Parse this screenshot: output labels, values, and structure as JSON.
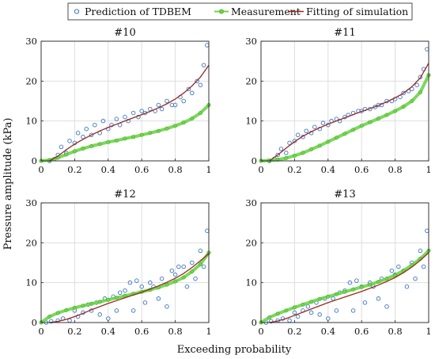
{
  "figure": {
    "xlabel": "Exceeding probability",
    "ylabel": "Pressure amplitude (kPa)"
  },
  "legend": {
    "items": [
      {
        "label": "Prediction of TDBEM",
        "color": "#3a76c4",
        "marker": "open-circle"
      },
      {
        "label": "Measurement",
        "color": "#6fd44a",
        "marker": "filled-circle"
      },
      {
        "label": "Fitting of simulation",
        "color": "#9b2a22",
        "marker": "line"
      }
    ]
  },
  "chart_data": [
    {
      "type": "scatter",
      "title": "#10",
      "xlim": [
        0,
        1
      ],
      "ylim": [
        0,
        30
      ],
      "xticks": [
        "0",
        "0.2",
        "0.4",
        "0.6",
        "0.8",
        "1"
      ],
      "yticks": [
        "0",
        "10",
        "20",
        "30"
      ],
      "grid": true,
      "series": [
        {
          "name": "Prediction of TDBEM",
          "kind": "scatter",
          "color": "#3a76c4",
          "x": [
            0.05,
            0.08,
            0.1,
            0.12,
            0.15,
            0.17,
            0.2,
            0.22,
            0.25,
            0.27,
            0.3,
            0.32,
            0.35,
            0.37,
            0.4,
            0.42,
            0.45,
            0.47,
            0.5,
            0.52,
            0.55,
            0.58,
            0.6,
            0.62,
            0.65,
            0.68,
            0.7,
            0.72,
            0.75,
            0.78,
            0.8,
            0.83,
            0.85,
            0.88,
            0.9,
            0.93,
            0.95,
            0.97,
            0.99
          ],
          "y": [
            0,
            0.5,
            1.5,
            3.5,
            2,
            5,
            4.5,
            7,
            6,
            8,
            6.5,
            9,
            7,
            10,
            8,
            9,
            10.5,
            9,
            11,
            10,
            12,
            11,
            12.5,
            12,
            13,
            12.5,
            14,
            13,
            15,
            14,
            14,
            16,
            15,
            18,
            17,
            20,
            19,
            24,
            29
          ]
        },
        {
          "name": "Measurement",
          "kind": "thickline",
          "color": "#6fd44a",
          "x": [
            0,
            0.05,
            0.1,
            0.15,
            0.2,
            0.25,
            0.3,
            0.35,
            0.4,
            0.45,
            0.5,
            0.55,
            0.6,
            0.65,
            0.7,
            0.75,
            0.8,
            0.85,
            0.9,
            0.95,
            1.0
          ],
          "y": [
            0,
            0.2,
            0.8,
            1.6,
            2.4,
            3.1,
            3.7,
            4.2,
            4.7,
            5.1,
            5.6,
            6.0,
            6.5,
            7.0,
            7.5,
            8.1,
            8.8,
            9.6,
            10.6,
            12.0,
            14.0
          ]
        },
        {
          "name": "Fitting of simulation",
          "kind": "line",
          "color": "#9b2a22",
          "x": [
            0.05,
            0.1,
            0.15,
            0.2,
            0.25,
            0.3,
            0.35,
            0.4,
            0.45,
            0.5,
            0.55,
            0.6,
            0.65,
            0.7,
            0.75,
            0.8,
            0.85,
            0.9,
            0.95,
            1.0
          ],
          "y": [
            0,
            1.2,
            2.8,
            4.2,
            5.4,
            6.5,
            7.5,
            8.4,
            9.2,
            10.0,
            10.8,
            11.6,
            12.4,
            13.3,
            14.3,
            15.5,
            17.0,
            18.8,
            21.0,
            24.0
          ]
        }
      ]
    },
    {
      "type": "scatter",
      "title": "#11",
      "xlim": [
        0,
        1
      ],
      "ylim": [
        0,
        30
      ],
      "xticks": [
        "0",
        "0.2",
        "0.4",
        "0.6",
        "0.8",
        "1"
      ],
      "yticks": [
        "0",
        "10",
        "20",
        "30"
      ],
      "grid": true,
      "series": [
        {
          "name": "Prediction of TDBEM",
          "kind": "scatter",
          "color": "#3a76c4",
          "x": [
            0.05,
            0.08,
            0.1,
            0.12,
            0.15,
            0.17,
            0.2,
            0.22,
            0.25,
            0.27,
            0.3,
            0.32,
            0.35,
            0.37,
            0.4,
            0.42,
            0.45,
            0.47,
            0.5,
            0.52,
            0.55,
            0.58,
            0.6,
            0.62,
            0.65,
            0.68,
            0.7,
            0.72,
            0.75,
            0.78,
            0.8,
            0.83,
            0.85,
            0.88,
            0.9,
            0.93,
            0.95,
            0.97,
            0.99
          ],
          "y": [
            0,
            0.5,
            1.5,
            3,
            2,
            4.5,
            5,
            6.5,
            6,
            7.5,
            7,
            8.5,
            8,
            9.5,
            9,
            10,
            10.5,
            10,
            11,
            11.5,
            12,
            12.5,
            12.5,
            13,
            13,
            13.5,
            14,
            14,
            15,
            15,
            15.5,
            16,
            17,
            17.5,
            18,
            19,
            21,
            23,
            28
          ]
        },
        {
          "name": "Measurement",
          "kind": "thickline",
          "color": "#6fd44a",
          "x": [
            0,
            0.05,
            0.1,
            0.15,
            0.2,
            0.25,
            0.3,
            0.35,
            0.4,
            0.45,
            0.5,
            0.55,
            0.6,
            0.65,
            0.7,
            0.75,
            0.8,
            0.85,
            0.9,
            0.95,
            1.0
          ],
          "y": [
            0,
            0.1,
            0.3,
            0.7,
            1.3,
            2.0,
            2.9,
            3.8,
            4.8,
            5.8,
            6.8,
            7.8,
            8.8,
            9.7,
            10.6,
            11.5,
            12.5,
            13.6,
            15.0,
            17.2,
            21.5
          ]
        },
        {
          "name": "Fitting of simulation",
          "kind": "line",
          "color": "#9b2a22",
          "x": [
            0.05,
            0.1,
            0.15,
            0.2,
            0.25,
            0.3,
            0.35,
            0.4,
            0.45,
            0.5,
            0.55,
            0.6,
            0.65,
            0.7,
            0.75,
            0.8,
            0.85,
            0.9,
            0.95,
            1.0
          ],
          "y": [
            0,
            1.5,
            3.2,
            4.8,
            6.2,
            7.3,
            8.3,
            9.2,
            10.0,
            10.8,
            11.6,
            12.4,
            13.1,
            13.9,
            14.8,
            15.8,
            17.0,
            18.6,
            20.8,
            24.5
          ]
        }
      ]
    },
    {
      "type": "scatter",
      "title": "#12",
      "xlim": [
        0,
        1
      ],
      "ylim": [
        0,
        30
      ],
      "xticks": [
        "0",
        "0.2",
        "0.4",
        "0.6",
        "0.8",
        "1"
      ],
      "yticks": [
        "0",
        "10",
        "20",
        "30"
      ],
      "grid": true,
      "series": [
        {
          "name": "Prediction of TDBEM",
          "kind": "scatter",
          "color": "#3a76c4",
          "x": [
            0.03,
            0.06,
            0.1,
            0.13,
            0.17,
            0.2,
            0.22,
            0.25,
            0.28,
            0.3,
            0.33,
            0.35,
            0.38,
            0.4,
            0.43,
            0.45,
            0.47,
            0.5,
            0.53,
            0.55,
            0.57,
            0.6,
            0.62,
            0.65,
            0.67,
            0.7,
            0.72,
            0.75,
            0.78,
            0.8,
            0.82,
            0.85,
            0.87,
            0.9,
            0.92,
            0.95,
            0.97,
            0.99
          ],
          "y": [
            0,
            0.3,
            0.5,
            1,
            0.5,
            3,
            1.5,
            2.5,
            4.5,
            3,
            5,
            2,
            6,
            1,
            6.5,
            3,
            7.5,
            8,
            10,
            3,
            10.5,
            9,
            5,
            10,
            9,
            6,
            11,
            4,
            13,
            12,
            14,
            14,
            9,
            15,
            11,
            18,
            14,
            23
          ]
        },
        {
          "name": "Measurement",
          "kind": "thickline",
          "color": "#6fd44a",
          "x": [
            0,
            0.05,
            0.1,
            0.15,
            0.2,
            0.25,
            0.3,
            0.35,
            0.4,
            0.45,
            0.5,
            0.55,
            0.6,
            0.65,
            0.7,
            0.75,
            0.8,
            0.85,
            0.9,
            0.95,
            1.0
          ],
          "y": [
            0,
            1.5,
            2.4,
            3.1,
            3.7,
            4.2,
            4.7,
            5.2,
            5.7,
            6.2,
            6.7,
            7.2,
            7.7,
            8.2,
            8.8,
            9.5,
            10.3,
            11.3,
            12.8,
            14.6,
            17.5
          ]
        },
        {
          "name": "Fitting of simulation",
          "kind": "line",
          "color": "#9b2a22",
          "x": [
            0.05,
            0.1,
            0.15,
            0.2,
            0.25,
            0.3,
            0.35,
            0.4,
            0.45,
            0.5,
            0.55,
            0.6,
            0.65,
            0.7,
            0.75,
            0.8,
            0.85,
            0.9,
            0.95,
            1.0
          ],
          "y": [
            0,
            0.3,
            0.8,
            1.5,
            2.3,
            3.2,
            4.0,
            4.8,
            5.5,
            6.2,
            6.9,
            7.6,
            8.4,
            9.2,
            10.1,
            11.1,
            12.3,
            13.8,
            15.5,
            17.3
          ]
        }
      ]
    },
    {
      "type": "scatter",
      "title": "#13",
      "xlim": [
        0,
        1
      ],
      "ylim": [
        0,
        30
      ],
      "xticks": [
        "0",
        "0.2",
        "0.4",
        "0.6",
        "0.8",
        "1"
      ],
      "yticks": [
        "0",
        "10",
        "20",
        "30"
      ],
      "grid": true,
      "series": [
        {
          "name": "Prediction of TDBEM",
          "kind": "scatter",
          "color": "#3a76c4",
          "x": [
            0.03,
            0.06,
            0.1,
            0.13,
            0.17,
            0.2,
            0.22,
            0.25,
            0.28,
            0.3,
            0.33,
            0.35,
            0.38,
            0.4,
            0.43,
            0.45,
            0.47,
            0.5,
            0.53,
            0.55,
            0.57,
            0.6,
            0.62,
            0.65,
            0.67,
            0.7,
            0.72,
            0.75,
            0.78,
            0.8,
            0.82,
            0.85,
            0.87,
            0.9,
            0.92,
            0.95,
            0.97,
            0.99
          ],
          "y": [
            0,
            0.3,
            0.5,
            1,
            0.5,
            2.5,
            1.5,
            3,
            4,
            2.5,
            5,
            2,
            6,
            1,
            6,
            3,
            7.5,
            8,
            10,
            3,
            10.5,
            9,
            5,
            10,
            9,
            6,
            11,
            4,
            13,
            12,
            14,
            13,
            9,
            15,
            11,
            18,
            14,
            23
          ]
        },
        {
          "name": "Measurement",
          "kind": "thickline",
          "color": "#6fd44a",
          "x": [
            0,
            0.05,
            0.1,
            0.15,
            0.2,
            0.25,
            0.3,
            0.35,
            0.4,
            0.45,
            0.5,
            0.55,
            0.6,
            0.65,
            0.7,
            0.75,
            0.8,
            0.85,
            0.9,
            0.95,
            1.0
          ],
          "y": [
            0,
            1.3,
            2.2,
            3.0,
            3.8,
            4.5,
            5.2,
            5.9,
            6.5,
            7.1,
            7.7,
            8.3,
            8.9,
            9.5,
            10.2,
            11.0,
            11.9,
            13.0,
            14.4,
            16.0,
            18.0
          ]
        },
        {
          "name": "Fitting of simulation",
          "kind": "line",
          "color": "#9b2a22",
          "x": [
            0.05,
            0.1,
            0.15,
            0.2,
            0.25,
            0.3,
            0.35,
            0.4,
            0.45,
            0.5,
            0.55,
            0.6,
            0.65,
            0.7,
            0.75,
            0.8,
            0.85,
            0.9,
            0.95,
            1.0
          ],
          "y": [
            0,
            0.4,
            1.0,
            1.8,
            2.6,
            3.4,
            4.2,
            5.0,
            5.7,
            6.4,
            7.1,
            7.8,
            8.6,
            9.4,
            10.3,
            11.3,
            12.5,
            13.9,
            15.6,
            17.5
          ]
        }
      ]
    }
  ]
}
